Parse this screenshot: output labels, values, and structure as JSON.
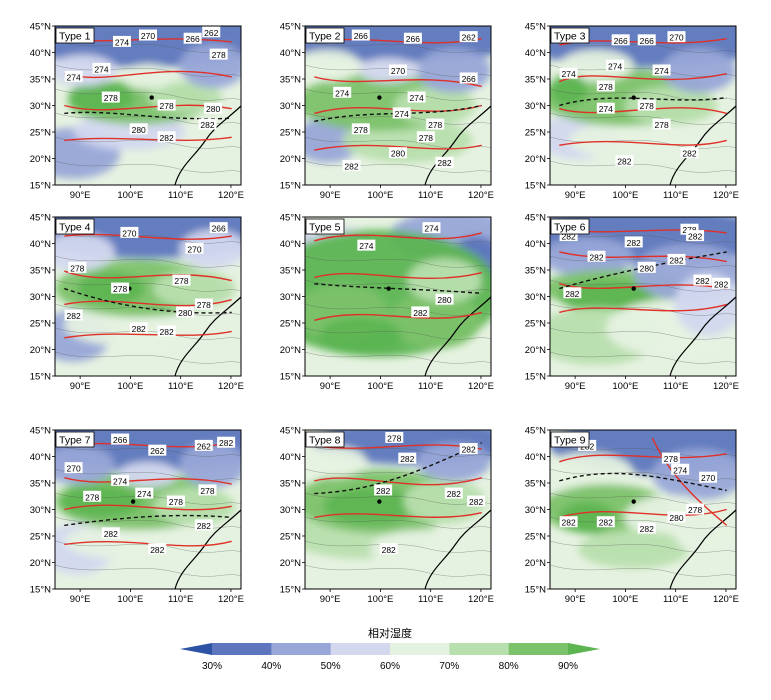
{
  "figure": {
    "panels": [
      {
        "label": "Type 1",
        "contours": [
          "274",
          "270",
          "266",
          "262",
          "274",
          "274",
          "278",
          "278",
          "278",
          "280",
          "282",
          "280",
          "282"
        ]
      },
      {
        "label": "Type 2",
        "contours": [
          "266",
          "266",
          "262",
          "270",
          "274",
          "274",
          "266",
          "278",
          "274",
          "278",
          "278",
          "280",
          "282",
          "282"
        ]
      },
      {
        "label": "Type 3",
        "contours": [
          "266",
          "270",
          "266",
          "274",
          "274",
          "274",
          "278",
          "278",
          "278",
          "274",
          "282",
          "282"
        ]
      },
      {
        "label": "Type 4",
        "contours": [
          "270",
          "266",
          "270",
          "278",
          "278",
          "278",
          "280",
          "278",
          "282",
          "282",
          "282"
        ]
      },
      {
        "label": "Type 5",
        "contours": [
          "274",
          "274",
          "280",
          "282"
        ]
      },
      {
        "label": "Type 6",
        "contours": [
          "282",
          "282",
          "278",
          "282",
          "280",
          "282",
          "282",
          "282",
          "282",
          "282"
        ]
      },
      {
        "label": "Type 7",
        "contours": [
          "266",
          "262",
          "282",
          "262",
          "270",
          "274",
          "274",
          "278",
          "278",
          "278",
          "282",
          "282",
          "282"
        ]
      },
      {
        "label": "Type 8",
        "contours": [
          "278",
          "282",
          "282",
          "282",
          "282",
          "282",
          "282"
        ]
      },
      {
        "label": "Type 9",
        "contours": [
          "282",
          "278",
          "274",
          "270",
          "282",
          "282",
          "280",
          "278",
          "282"
        ]
      }
    ],
    "lat_ticks": [
      "45°N",
      "40°N",
      "35°N",
      "30°N",
      "25°N",
      "20°N",
      "15°N"
    ],
    "lon_ticks": [
      "90°E",
      "100°E",
      "110°E",
      "120°E"
    ],
    "colorbar": {
      "title": "相对湿度",
      "tick_labels": [
        "30%",
        "40%",
        "50%",
        "60%",
        "70%",
        "80%",
        "90%"
      ],
      "colors": [
        "#2e53a5",
        "#5d76bd",
        "#98a6d8",
        "#d3d8ef",
        "#e6f2e1",
        "#b8dfae",
        "#7cc26a",
        "#5db552"
      ]
    }
  }
}
